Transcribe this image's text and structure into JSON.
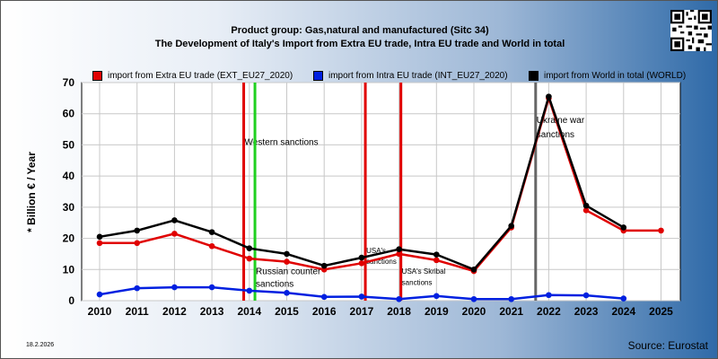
{
  "titles": {
    "line1": "Product group: Gas,natural and manufactured (Sitc 34)",
    "line2": "The Development of Italy's Import from Extra EU trade, Intra EU trade and World in total"
  },
  "footer": {
    "date": "18.2.2026",
    "source": "Source: Eurostat"
  },
  "chart_data": {
    "type": "line",
    "x": [
      2010,
      2011,
      2012,
      2013,
      2014,
      2015,
      2016,
      2017,
      2018,
      2019,
      2020,
      2021,
      2022,
      2023,
      2024,
      2025
    ],
    "ylabel": "* Billion € / Year",
    "ylim": [
      0,
      70
    ],
    "yticks": [
      0,
      10,
      20,
      30,
      40,
      50,
      60,
      70
    ],
    "grid": true,
    "legend_position": "top",
    "series": [
      {
        "name": "import from Extra EU trade (EXT_EU27_2020)",
        "color": "#e00000",
        "values": [
          18.5,
          18.5,
          21.5,
          17.5,
          13.5,
          12.5,
          10,
          12,
          15,
          13,
          9.5,
          23.5,
          65,
          29,
          22.5,
          22.5
        ]
      },
      {
        "name": "import from Intra EU trade (INT_EU27_2020)",
        "color": "#0020e0",
        "values": [
          2,
          4,
          4.3,
          4.3,
          3.2,
          2.5,
          1.2,
          1.3,
          0.5,
          1.5,
          0.5,
          0.5,
          1.8,
          1.7,
          0.7,
          null
        ]
      },
      {
        "name": "import from World in total (WORLD)",
        "color": "#000000",
        "values": [
          20.5,
          22.5,
          25.8,
          22,
          16.8,
          15,
          11.2,
          13.8,
          16.5,
          14.8,
          10,
          24,
          65.5,
          30.5,
          23.5,
          null
        ]
      }
    ],
    "events": [
      {
        "x": 2013.85,
        "color": "#e00000",
        "labels": [
          {
            "text": "Western sanctions",
            "y": 50,
            "size": 10
          }
        ]
      },
      {
        "x": 2014.15,
        "color": "#20d020",
        "labels": [
          {
            "text": "Russian counter",
            "y": 8.5,
            "size": 10
          },
          {
            "text": "sanctions",
            "y": 4.5,
            "size": 10
          }
        ]
      },
      {
        "x": 2017.1,
        "color": "#e00000",
        "labels": [
          {
            "text": "USA's",
            "y": 15.2,
            "size": 8
          },
          {
            "text": "sanctions",
            "y": 11.8,
            "size": 8
          }
        ]
      },
      {
        "x": 2018.05,
        "color": "#e00000",
        "labels": [
          {
            "text": "USA's Skribal",
            "y": 8.6,
            "size": 8
          },
          {
            "text": "sanctions",
            "y": 5,
            "size": 8
          }
        ]
      },
      {
        "x": 2021.65,
        "color": "#666666",
        "labels": [
          {
            "text": "Ukraine war",
            "y": 57,
            "size": 10
          },
          {
            "text": "sanctions",
            "y": 52.5,
            "size": 10
          }
        ]
      }
    ]
  }
}
